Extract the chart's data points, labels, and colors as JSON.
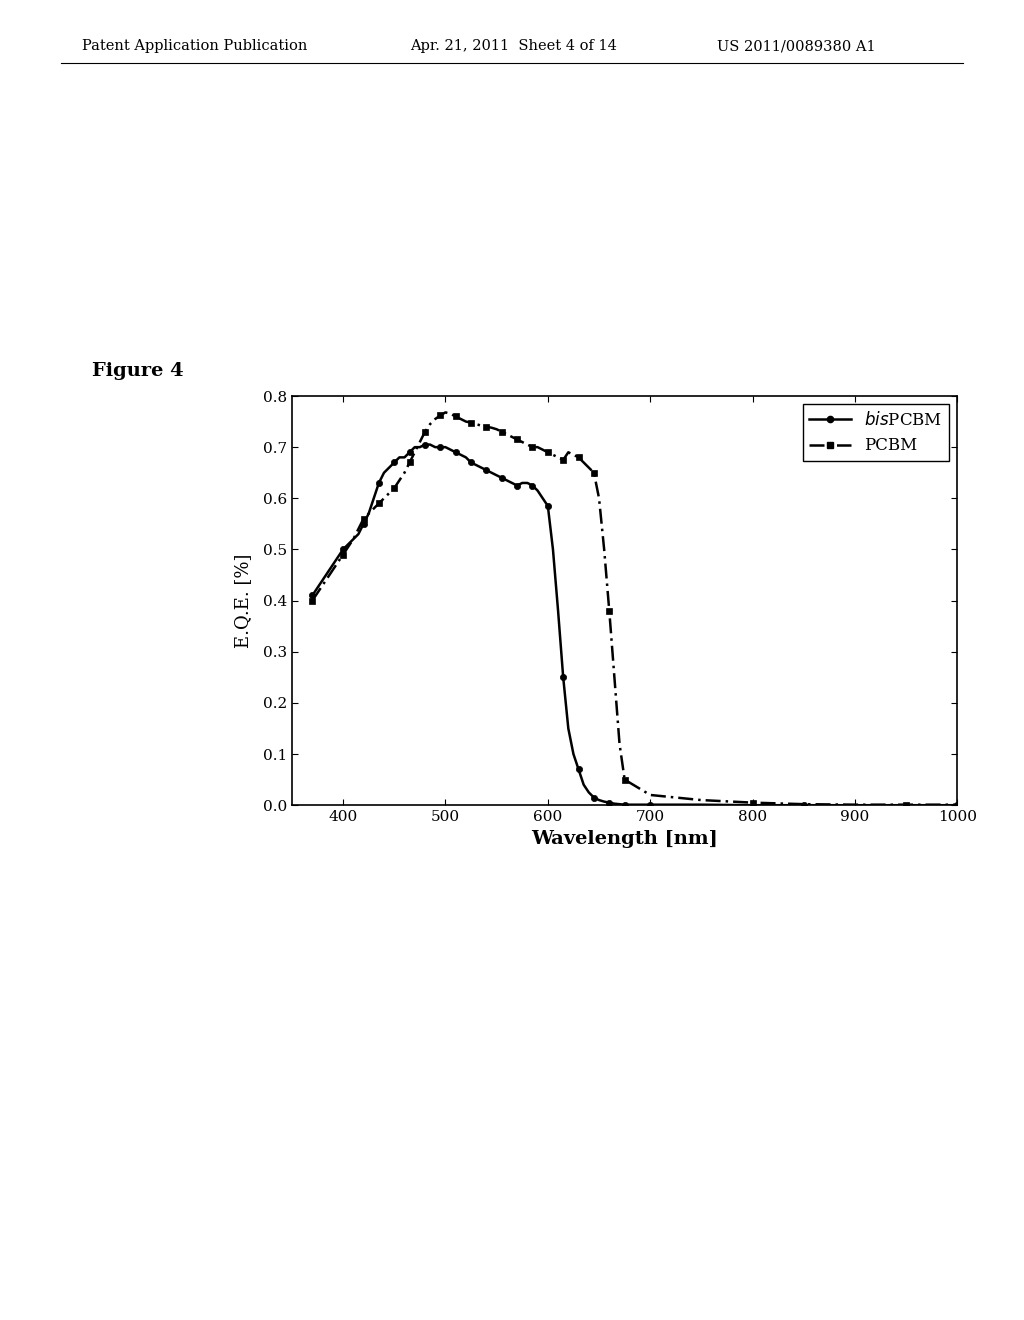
{
  "header_left": "Patent Application Publication",
  "header_mid": "Apr. 21, 2011  Sheet 4 of 14",
  "header_right": "US 2011/0089380 A1",
  "figure_label": "Figure 4",
  "xlabel": "Wavelength [nm]",
  "ylabel": "E.Q.E. [%]",
  "xlim": [
    350,
    1000
  ],
  "ylim": [
    0.0,
    0.8
  ],
  "xticks": [
    400,
    500,
    600,
    700,
    800,
    900,
    1000
  ],
  "yticks": [
    0.0,
    0.1,
    0.2,
    0.3,
    0.4,
    0.5,
    0.6,
    0.7,
    0.8
  ],
  "bisPCBM_x": [
    370,
    380,
    390,
    400,
    410,
    415,
    420,
    425,
    430,
    435,
    440,
    445,
    450,
    455,
    460,
    465,
    470,
    475,
    480,
    485,
    490,
    495,
    500,
    505,
    510,
    515,
    520,
    525,
    530,
    535,
    540,
    545,
    550,
    555,
    560,
    565,
    570,
    575,
    580,
    585,
    590,
    595,
    600,
    605,
    610,
    615,
    620,
    625,
    630,
    635,
    640,
    645,
    650,
    655,
    660,
    665,
    670,
    675,
    680,
    690,
    700,
    750,
    800,
    850,
    900,
    950,
    1000
  ],
  "bisPCBM_y": [
    0.41,
    0.44,
    0.47,
    0.5,
    0.52,
    0.53,
    0.55,
    0.57,
    0.6,
    0.63,
    0.65,
    0.66,
    0.67,
    0.68,
    0.68,
    0.69,
    0.7,
    0.7,
    0.705,
    0.705,
    0.7,
    0.7,
    0.7,
    0.695,
    0.69,
    0.685,
    0.68,
    0.67,
    0.665,
    0.66,
    0.655,
    0.65,
    0.645,
    0.64,
    0.635,
    0.63,
    0.625,
    0.63,
    0.63,
    0.625,
    0.615,
    0.6,
    0.585,
    0.5,
    0.38,
    0.25,
    0.15,
    0.1,
    0.07,
    0.04,
    0.025,
    0.015,
    0.01,
    0.007,
    0.005,
    0.003,
    0.002,
    0.001,
    0.001,
    0.001,
    0.001,
    0.001,
    0.0,
    0.0,
    0.0,
    0.0,
    0.0
  ],
  "PCBM_x": [
    370,
    380,
    390,
    400,
    410,
    415,
    420,
    425,
    430,
    435,
    440,
    445,
    450,
    455,
    460,
    465,
    470,
    475,
    480,
    485,
    490,
    495,
    500,
    505,
    510,
    515,
    520,
    525,
    530,
    535,
    540,
    545,
    550,
    555,
    560,
    565,
    570,
    575,
    580,
    585,
    590,
    595,
    600,
    605,
    610,
    615,
    620,
    625,
    630,
    635,
    640,
    645,
    650,
    655,
    660,
    665,
    670,
    675,
    700,
    750,
    800,
    850,
    900,
    950,
    1000
  ],
  "PCBM_y": [
    0.4,
    0.43,
    0.46,
    0.49,
    0.52,
    0.54,
    0.56,
    0.57,
    0.58,
    0.59,
    0.6,
    0.61,
    0.62,
    0.635,
    0.65,
    0.67,
    0.69,
    0.71,
    0.73,
    0.745,
    0.755,
    0.762,
    0.768,
    0.765,
    0.76,
    0.755,
    0.75,
    0.748,
    0.745,
    0.742,
    0.74,
    0.738,
    0.735,
    0.73,
    0.725,
    0.72,
    0.715,
    0.71,
    0.705,
    0.7,
    0.7,
    0.695,
    0.69,
    0.685,
    0.68,
    0.675,
    0.69,
    0.685,
    0.68,
    0.67,
    0.66,
    0.65,
    0.6,
    0.5,
    0.38,
    0.25,
    0.12,
    0.05,
    0.02,
    0.01,
    0.005,
    0.002,
    0.001,
    0.001,
    0.001
  ],
  "line_color": "#000000",
  "background_color": "#ffffff"
}
